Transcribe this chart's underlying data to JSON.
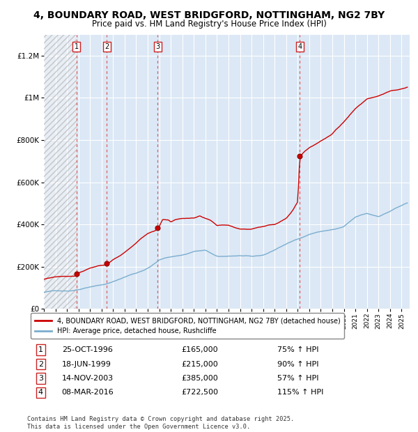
{
  "title": "4, BOUNDARY ROAD, WEST BRIDGFORD, NOTTINGHAM, NG2 7BY",
  "subtitle": "Price paid vs. HM Land Registry's House Price Index (HPI)",
  "title_fontsize": 10,
  "subtitle_fontsize": 8.5,
  "xlim": [
    1994.0,
    2025.7
  ],
  "ylim": [
    0,
    1300000
  ],
  "yticks": [
    0,
    200000,
    400000,
    600000,
    800000,
    1000000,
    1200000
  ],
  "ytick_labels": [
    "£0",
    "£200K",
    "£400K",
    "£600K",
    "£800K",
    "£1M",
    "£1.2M"
  ],
  "purchases": [
    {
      "num": 1,
      "date": "25-OCT-1996",
      "year": 1996.81,
      "price": 165000,
      "hpi_pct": "75% ↑ HPI"
    },
    {
      "num": 2,
      "date": "18-JUN-1999",
      "year": 1999.46,
      "price": 215000,
      "hpi_pct": "90% ↑ HPI"
    },
    {
      "num": 3,
      "date": "14-NOV-2003",
      "year": 2003.87,
      "price": 385000,
      "hpi_pct": "57% ↑ HPI"
    },
    {
      "num": 4,
      "date": "08-MAR-2016",
      "year": 2016.18,
      "price": 722500,
      "hpi_pct": "115% ↑ HPI"
    }
  ],
  "red_line_color": "#cc0000",
  "blue_line_color": "#7aadcf",
  "legend_label_red": "4, BOUNDARY ROAD, WEST BRIDGFORD, NOTTINGHAM, NG2 7BY (detached house)",
  "legend_label_blue": "HPI: Average price, detached house, Rushcliffe",
  "footer_text": "Contains HM Land Registry data © Crown copyright and database right 2025.\nThis data is licensed under the Open Government Licence v3.0.",
  "chart_bg_color": "#dce8f5",
  "hatch_bg_color": "#ffffff",
  "grid_color": "#ffffff",
  "purchase_vline_color": "#dd4444"
}
